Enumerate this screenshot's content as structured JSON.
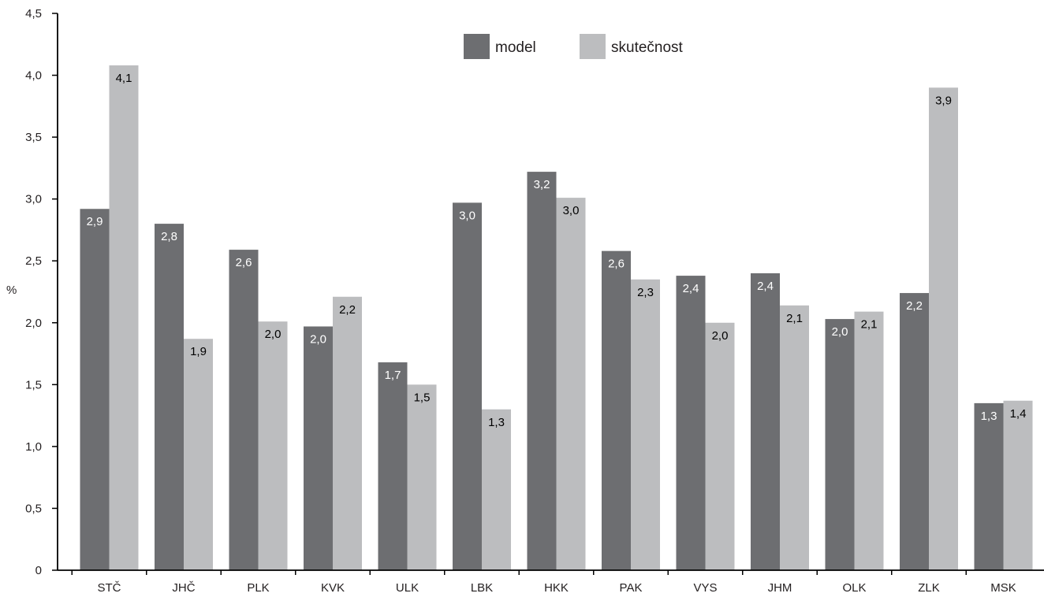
{
  "chart_data": {
    "type": "bar",
    "title": "",
    "xlabel": "",
    "ylabel": "%",
    "ylim": [
      0,
      4.5
    ],
    "yticks": [
      "0",
      "0,5",
      "1,0",
      "1,5",
      "2,0",
      "2,5",
      "3,0",
      "3,5",
      "4,0",
      "4,5"
    ],
    "ytick_values": [
      0,
      0.5,
      1.0,
      1.5,
      2.0,
      2.5,
      3.0,
      3.5,
      4.0,
      4.5
    ],
    "categories": [
      "STČ",
      "JHČ",
      "PLK",
      "KVK",
      "ULK",
      "LBK",
      "HKK",
      "PAK",
      "VYS",
      "JHM",
      "OLK",
      "ZLK",
      "MSK"
    ],
    "series": [
      {
        "name": "model",
        "color": "#6d6e71",
        "label_color": "#ffffff",
        "values": [
          2.92,
          2.8,
          2.59,
          1.97,
          1.68,
          2.97,
          3.22,
          2.58,
          2.38,
          2.4,
          2.03,
          2.24,
          1.35
        ],
        "labels": [
          "2,9",
          "2,8",
          "2,6",
          "2,0",
          "1,7",
          "3,0",
          "3,2",
          "2,6",
          "2,4",
          "2,4",
          "2,0",
          "2,2",
          "1,3"
        ]
      },
      {
        "name": "skutečnost",
        "color": "#bcbdbf",
        "label_color": "#000000",
        "values": [
          4.08,
          1.87,
          2.01,
          2.21,
          1.5,
          1.3,
          3.01,
          2.35,
          2.0,
          2.14,
          2.09,
          3.9,
          1.37
        ],
        "labels": [
          "4,1",
          "1,9",
          "2,0",
          "2,2",
          "1,5",
          "1,3",
          "3,0",
          "2,3",
          "2,0",
          "2,1",
          "2,1",
          "3,9",
          "1,4"
        ]
      }
    ],
    "legend_position": "top-center",
    "grid": false
  }
}
